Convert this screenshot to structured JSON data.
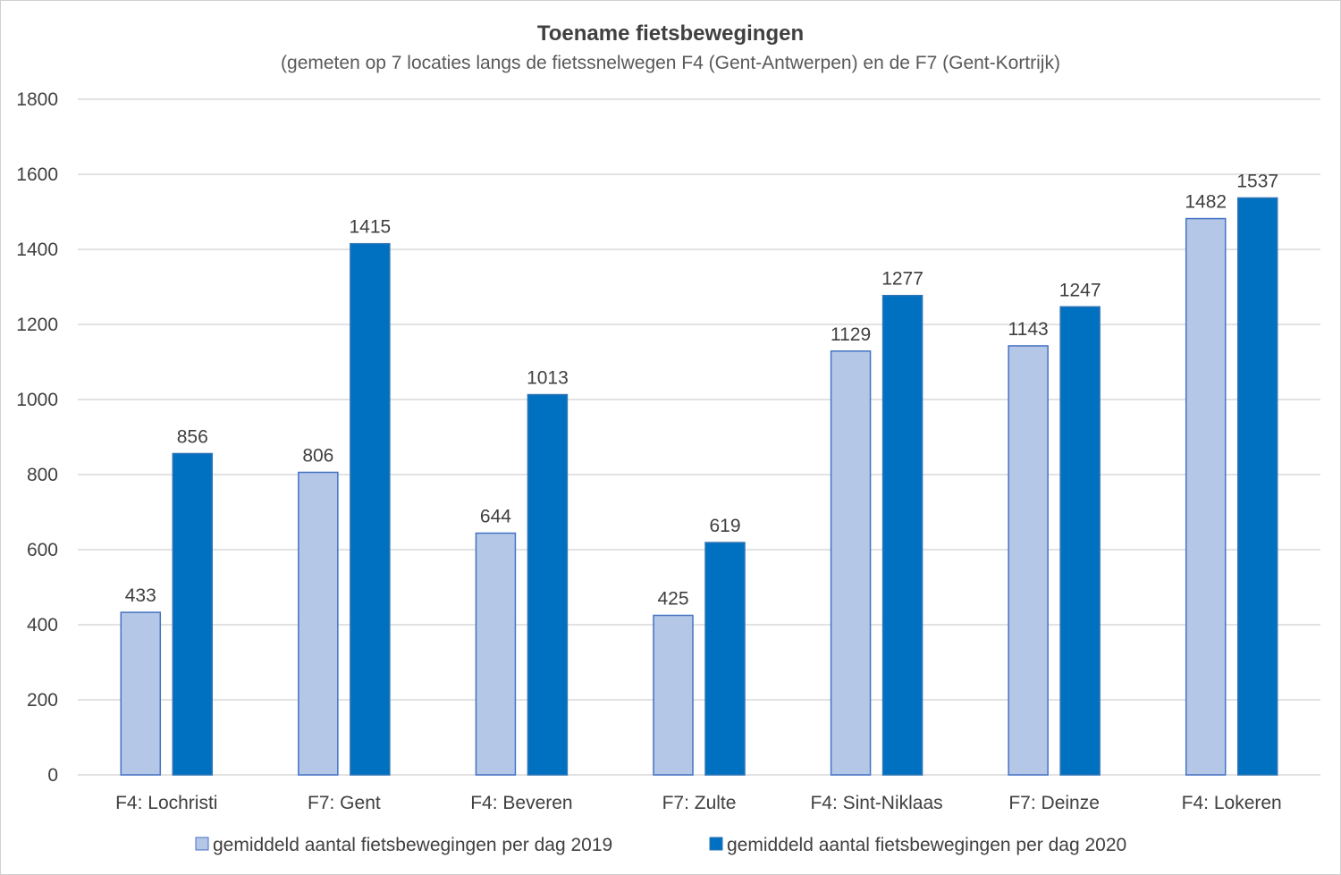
{
  "chart_data": {
    "type": "bar",
    "title": "Toename fietsbewegingen",
    "subtitle": "(gemeten op 7 locaties langs de fietssnelwegen F4 (Gent-Antwerpen) en de F7 (Gent-Kortrijk)",
    "categories": [
      "F4:  Lochristi",
      "F7: Gent",
      "F4: Beveren",
      "F7: Zulte",
      "F4: Sint-Niklaas",
      "F7: Deinze",
      "F4:  Lokeren"
    ],
    "series": [
      {
        "name": "gemiddeld aantal fietsbewegingen per dag 2019",
        "values": [
          433,
          806,
          644,
          425,
          1129,
          1143,
          1482
        ],
        "color": "#b4c7e7",
        "stroke": "#4472c4"
      },
      {
        "name": "gemiddeld aantal fietsbewegingen per dag 2020",
        "values": [
          856,
          1415,
          1013,
          619,
          1277,
          1247,
          1537
        ],
        "color": "#0070c0",
        "stroke": "#2e75b6"
      }
    ],
    "ylim": [
      0,
      1800
    ],
    "yticks": [
      0,
      200,
      400,
      600,
      800,
      1000,
      1200,
      1400,
      1600,
      1800
    ],
    "grid": true,
    "legend": "bottom",
    "xlabel": "",
    "ylabel": ""
  }
}
